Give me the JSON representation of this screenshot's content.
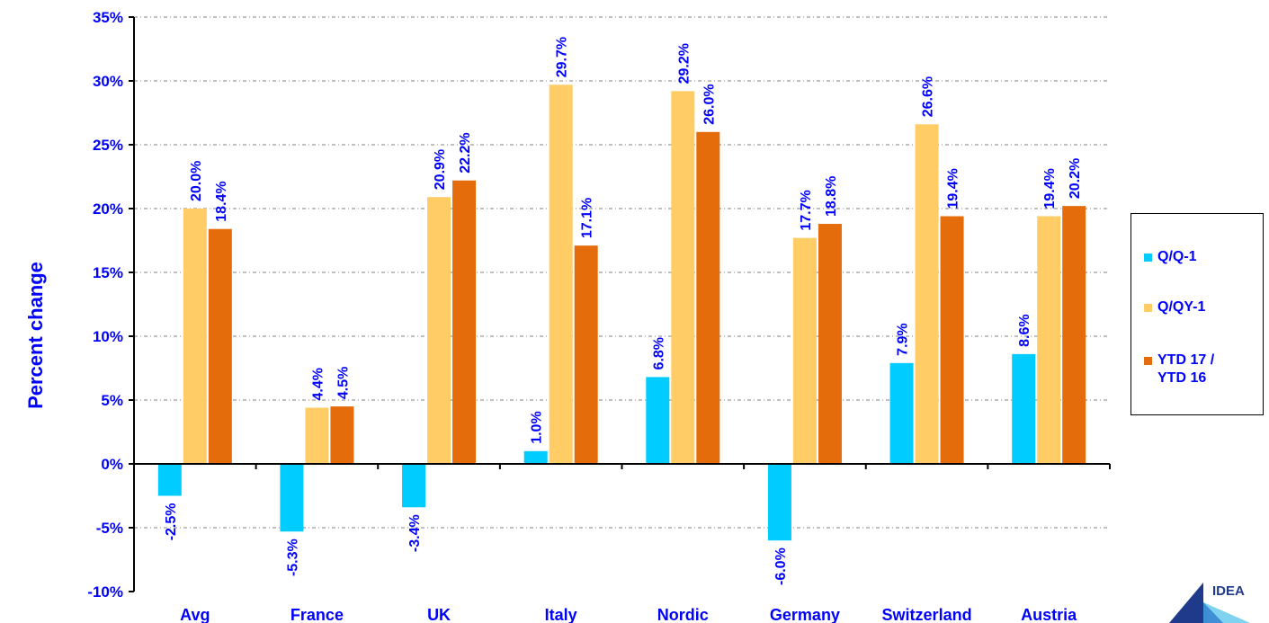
{
  "colors": {
    "q_q1": "#00ccff",
    "q_qy1": "#ffcc66",
    "ytd": "#e46c0a",
    "text": "#0000ff",
    "grid": "#808080"
  },
  "legend": {
    "items": [
      "Q/Q-1",
      "Q/QY-1",
      "YTD 17 /\nYTD 16"
    ]
  },
  "logo": {
    "text": "IDEA"
  },
  "chart_data": {
    "type": "bar",
    "title": "",
    "xlabel": "",
    "ylabel": "Percent change",
    "ylim": [
      -10,
      35
    ],
    "ytick_step": 5,
    "ytick_labels": [
      "35%",
      "30%",
      "25%",
      "20%",
      "15%",
      "10%",
      "5%",
      "0%",
      "-5%",
      "-10%"
    ],
    "grid": true,
    "legend_position": "right",
    "categories": [
      "Avg",
      "France",
      "UK",
      "Italy",
      "Nordic",
      "Germany",
      "Switzerland",
      "Austria"
    ],
    "series": [
      {
        "name": "Q/Q-1",
        "values": [
          -2.5,
          -5.3,
          -3.4,
          1.0,
          6.8,
          -6.0,
          7.9,
          8.6
        ],
        "labels": [
          "-2.5%",
          "-5.3%",
          "-3.4%",
          "1.0%",
          "6.8%",
          "-6.0%",
          "7.9%",
          "8.6%"
        ]
      },
      {
        "name": "Q/QY-1",
        "values": [
          20.0,
          4.4,
          20.9,
          29.7,
          29.2,
          17.7,
          26.6,
          19.4
        ],
        "labels": [
          "20.0%",
          "4.4%",
          "20.9%",
          "29.7%",
          "29.2%",
          "17.7%",
          "26.6%",
          "19.4%"
        ]
      },
      {
        "name": "YTD 17 / YTD 16",
        "values": [
          18.4,
          4.5,
          22.2,
          17.1,
          26.0,
          18.8,
          19.4,
          20.2
        ],
        "labels": [
          "18.4%",
          "4.5%",
          "22.2%",
          "17.1%",
          "26.0%",
          "18.8%",
          "19.4%",
          "20.2%"
        ]
      }
    ]
  }
}
